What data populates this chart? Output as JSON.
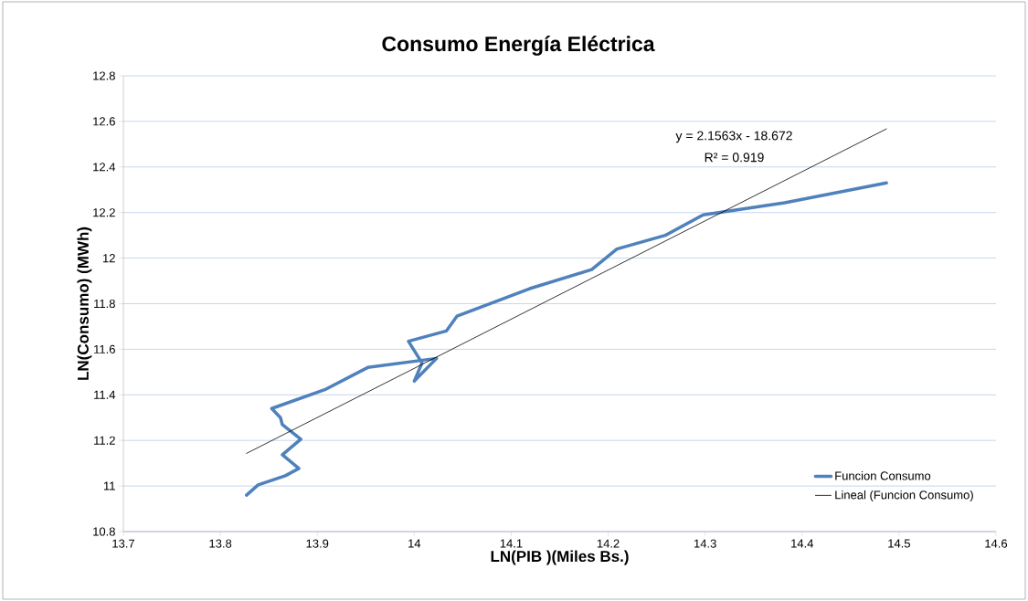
{
  "chart_data": {
    "type": "line",
    "title": "Consumo Energía Eléctrica",
    "xlabel": "LN(PIB )(Miles Bs.)",
    "ylabel": "LN(Consumo) (MWh)",
    "series": [
      {
        "name": "Funcion Consumo",
        "color": "#4f81bd",
        "x": [
          13.827,
          13.839,
          13.867,
          13.881,
          13.864,
          13.883,
          13.864,
          13.862,
          13.853,
          13.909,
          13.952,
          14.023,
          14.0,
          14.008,
          13.994,
          14.033,
          14.044,
          14.119,
          14.183,
          14.209,
          14.259,
          14.298,
          14.382,
          14.487
        ],
        "values": [
          10.96,
          11.005,
          11.045,
          11.077,
          11.137,
          11.205,
          11.269,
          11.3,
          11.34,
          11.425,
          11.52,
          11.56,
          11.46,
          11.54,
          11.635,
          11.68,
          11.745,
          11.866,
          11.95,
          12.04,
          12.1,
          12.19,
          12.243,
          12.33
        ]
      },
      {
        "name": "Lineal (Funcion Consumo)",
        "color": "#000000",
        "x": [
          13.827,
          14.487
        ],
        "values": [
          11.143,
          12.567
        ]
      }
    ],
    "annotations": [
      "y = 2.1563x - 18.672",
      "R² = 0.919"
    ],
    "xlim": [
      13.7,
      14.6
    ],
    "xticks": [
      13.7,
      13.8,
      13.9,
      14,
      14.1,
      14.2,
      14.3,
      14.4,
      14.5,
      14.6
    ],
    "ylim": [
      10.8,
      12.8
    ],
    "yticks": [
      10.8,
      11,
      11.2,
      11.4,
      11.6,
      11.8,
      12,
      12.2,
      12.4,
      12.6,
      12.8
    ],
    "grid": "y",
    "legend": "bottom right",
    "marker": "none",
    "line_style": "solid"
  }
}
